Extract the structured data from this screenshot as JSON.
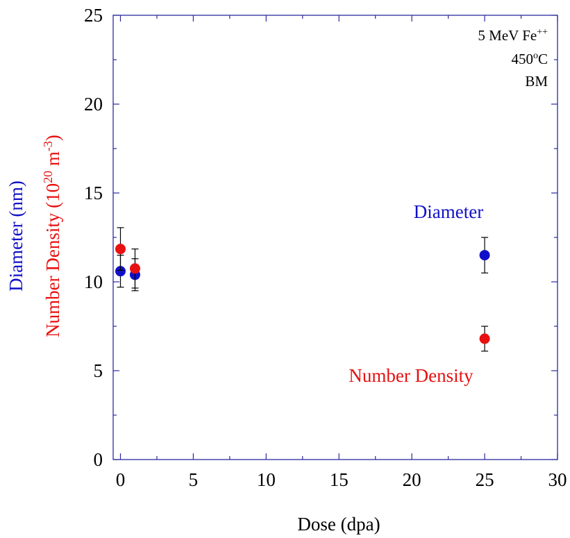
{
  "chart_data": {
    "type": "scatter",
    "xlabel": "Dose (dpa)",
    "ylabel_parts": {
      "diameter": "Diameter (nm)",
      "density_prefix": "Number Density (10",
      "density_exp1": "20",
      "density_unit": " m",
      "density_exp2": "-3",
      "density_suffix": ")"
    },
    "xlim": [
      -0.5,
      30
    ],
    "ylim": [
      0,
      25
    ],
    "xticks": [
      "0",
      "5",
      "10",
      "15",
      "20",
      "25",
      "30"
    ],
    "yticks": [
      "0",
      "5",
      "10",
      "15",
      "20",
      "25"
    ],
    "annotation": {
      "line1": "5 MeV Fe",
      "line1_sup": "++",
      "line2_pre": "450",
      "line2_sup": "o",
      "line2_post": "C",
      "line3": "BM"
    },
    "series": [
      {
        "name": "Diameter",
        "color": "#1010c8",
        "points": [
          {
            "x": 0,
            "y": 10.6,
            "err": 0.9
          },
          {
            "x": 1,
            "y": 10.4,
            "err": 0.9
          },
          {
            "x": 25,
            "y": 11.5,
            "err": 1.0
          }
        ]
      },
      {
        "name": "Number Density",
        "color": "#e81010",
        "points": [
          {
            "x": 0,
            "y": 11.85,
            "err": 1.2
          },
          {
            "x": 1,
            "y": 10.75,
            "err": 1.1
          },
          {
            "x": 25,
            "y": 6.8,
            "err": 0.7
          }
        ]
      }
    ],
    "axis_color": "#2a2aa0"
  }
}
